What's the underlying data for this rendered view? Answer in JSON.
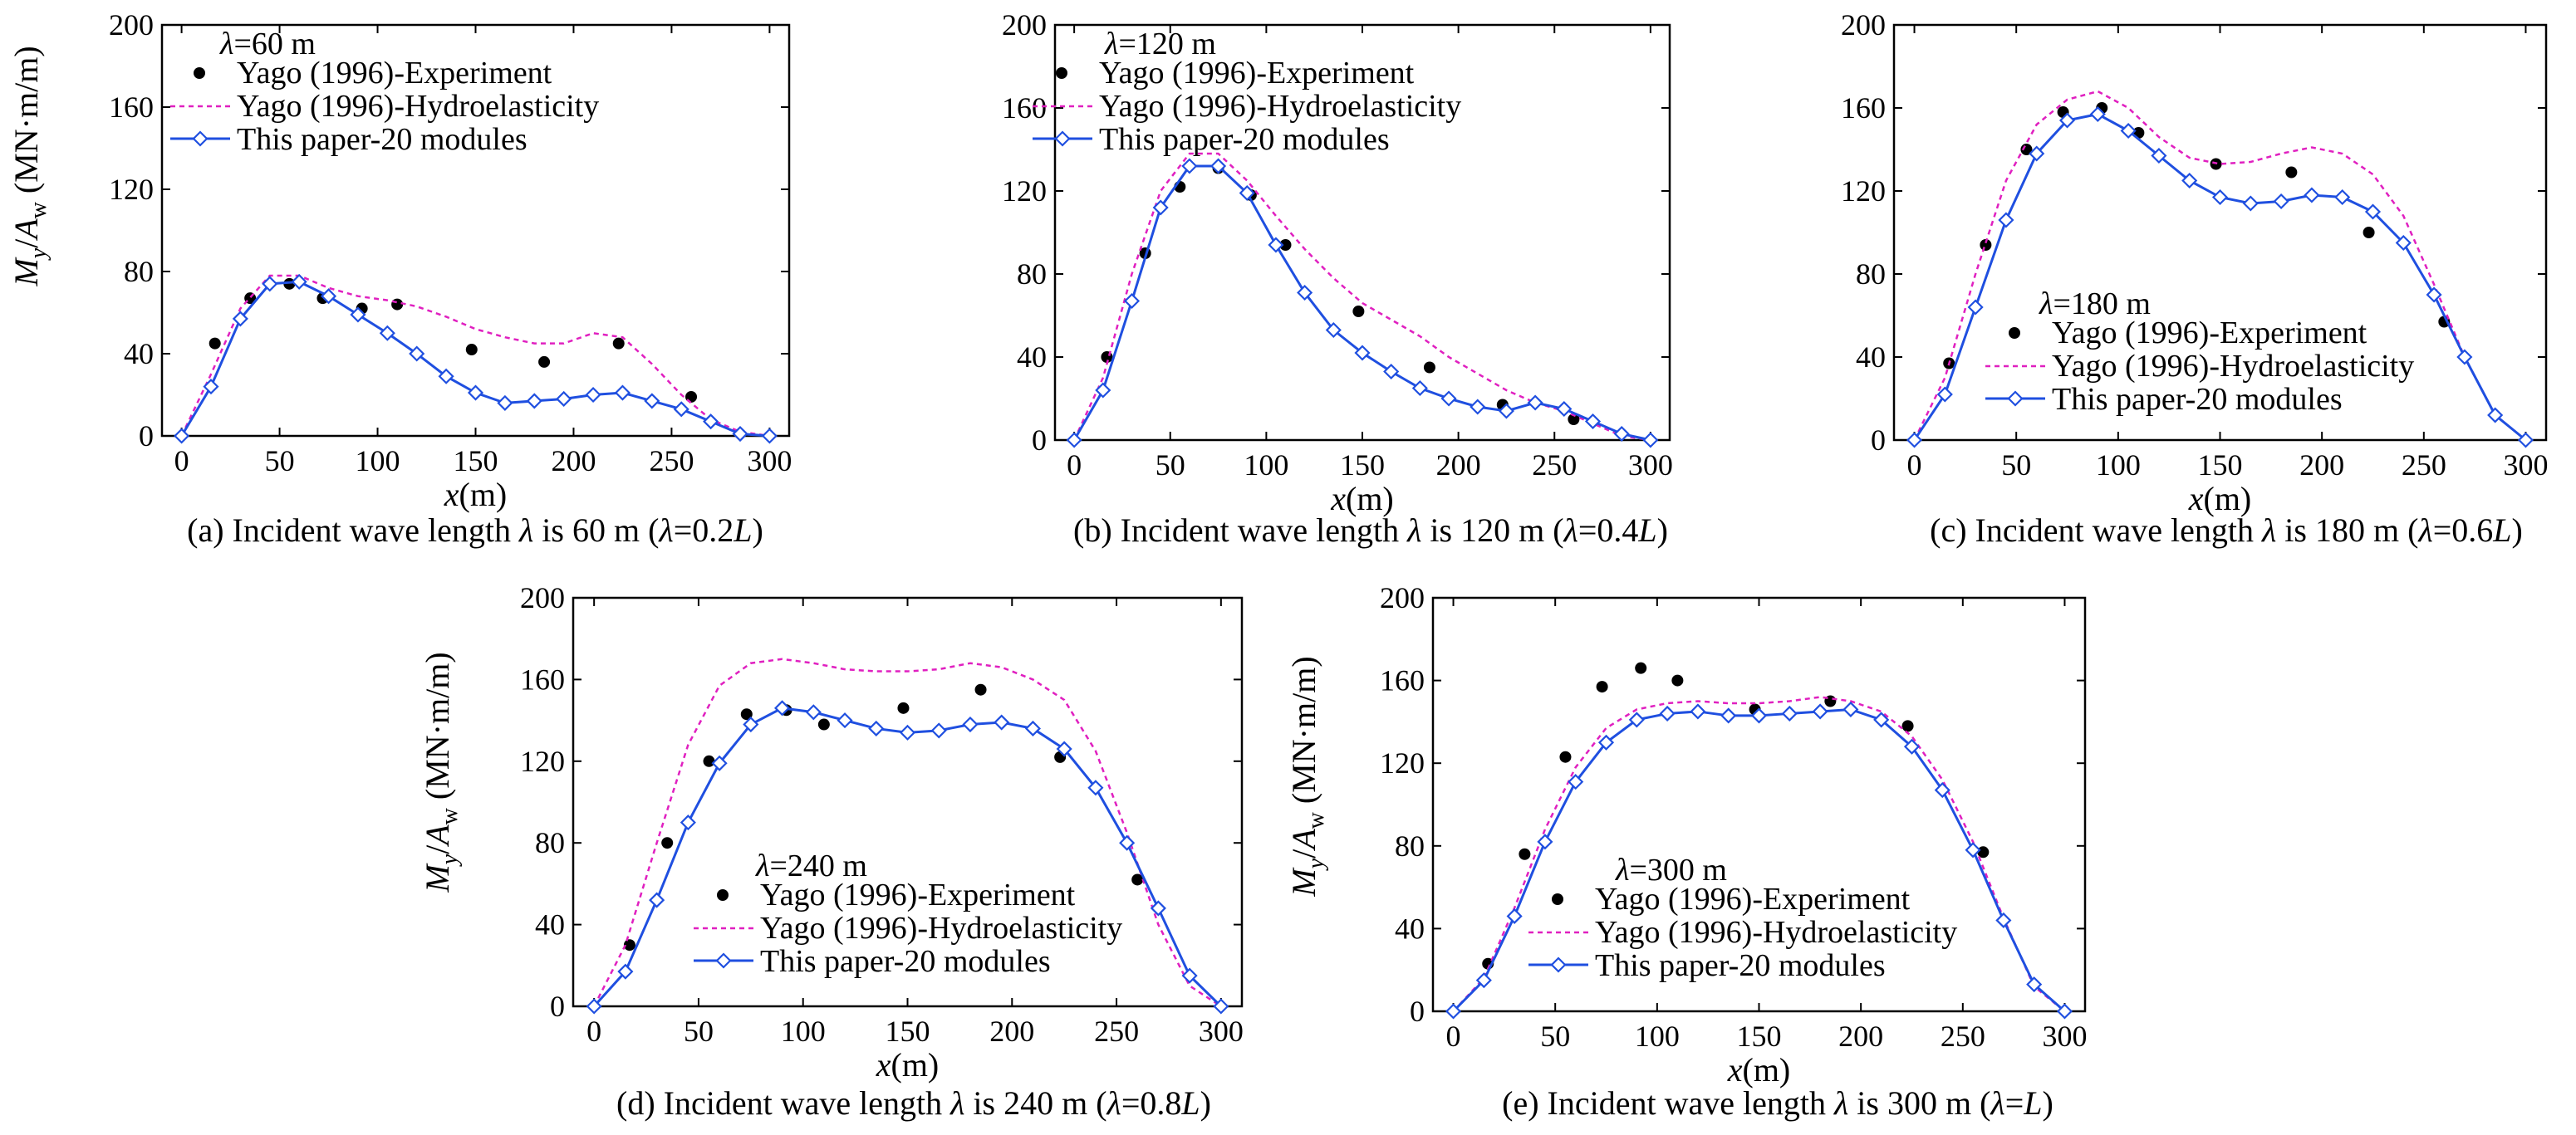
{
  "legend_labels": {
    "experiment": "Yago (1996)-Experiment",
    "hydro": "Yago (1996)-Hydroelasticity",
    "paper": "This paper-20 modules"
  },
  "axis_text": {
    "x_main": "x",
    "x_unit": "(m)",
    "y_M": "M",
    "y_y": "y",
    "y_slash": "/",
    "y_A": "A",
    "y_w": "w",
    "y_unit": " (MN·m/m)"
  },
  "colors": {
    "experiment": "#000000",
    "hydro": "#e020c0",
    "paper": "#1f4fe0"
  },
  "chart_data": [
    {
      "type": "line",
      "id": "a",
      "caption": {
        "pre": "(a) Incident wave length ",
        "lam": "λ",
        "mid": " is 60 m (",
        "lam2": "λ",
        "eq": "=0.2",
        "L": "L",
        "post": ")"
      },
      "wave_label": {
        "lam": "λ",
        "text": "=60 m"
      },
      "xlim": [
        -10,
        310
      ],
      "ylim": [
        0,
        200
      ],
      "xticks": [
        "0",
        "50",
        "100",
        "150",
        "200",
        "250",
        "300"
      ],
      "yticks": [
        "0",
        "40",
        "80",
        "120",
        "160",
        "200"
      ],
      "series": [
        {
          "name": "Yago (1996)-Experiment",
          "kind": "scatter",
          "x": [
            17,
            35,
            55,
            72,
            92,
            110,
            148,
            185,
            223,
            260
          ],
          "y": [
            45,
            67,
            74,
            67,
            62,
            64,
            42,
            36,
            45,
            19
          ]
        },
        {
          "name": "Yago (1996)-Hydroelasticity",
          "kind": "dashed",
          "x": [
            0,
            15,
            30,
            45,
            60,
            75,
            90,
            105,
            120,
            135,
            150,
            165,
            180,
            195,
            210,
            225,
            240,
            255,
            270,
            285,
            300
          ],
          "y": [
            0,
            30,
            62,
            78,
            78,
            72,
            68,
            66,
            63,
            58,
            52,
            48,
            45,
            45,
            50,
            48,
            35,
            20,
            8,
            2,
            0
          ]
        },
        {
          "name": "This paper-20 modules",
          "kind": "line",
          "x": [
            0,
            15,
            30,
            45,
            60,
            75,
            90,
            105,
            120,
            135,
            150,
            165,
            180,
            195,
            210,
            225,
            240,
            255,
            270,
            285,
            300
          ],
          "y": [
            0,
            24,
            57,
            74,
            75,
            68,
            59,
            50,
            40,
            29,
            21,
            16,
            17,
            18,
            20,
            21,
            17,
            13,
            7,
            1,
            0
          ]
        }
      ]
    },
    {
      "type": "line",
      "id": "b",
      "caption": {
        "pre": "(b) Incident wave length ",
        "lam": "λ",
        "mid": " is 120 m (",
        "lam2": "λ",
        "eq": "=0.4",
        "L": "L",
        "post": ")"
      },
      "wave_label": {
        "lam": "λ",
        "text": "=120 m"
      },
      "xlim": [
        -10,
        310
      ],
      "ylim": [
        0,
        200
      ],
      "xticks": [
        "0",
        "50",
        "100",
        "150",
        "200",
        "250",
        "300"
      ],
      "yticks": [
        "0",
        "40",
        "80",
        "120",
        "160",
        "200"
      ],
      "series": [
        {
          "name": "Yago (1996)-Experiment",
          "kind": "scatter",
          "x": [
            17,
            37,
            55,
            75,
            92,
            110,
            148,
            185,
            223,
            260
          ],
          "y": [
            40,
            90,
            122,
            131,
            118,
            94,
            62,
            35,
            17,
            10
          ]
        },
        {
          "name": "Yago (1996)-Hydroelasticity",
          "kind": "dashed",
          "x": [
            0,
            15,
            30,
            45,
            60,
            75,
            90,
            105,
            120,
            135,
            150,
            165,
            180,
            195,
            210,
            225,
            240,
            255,
            270,
            285,
            300
          ],
          "y": [
            0,
            30,
            80,
            120,
            138,
            138,
            125,
            108,
            92,
            78,
            66,
            58,
            50,
            40,
            32,
            24,
            18,
            14,
            8,
            2,
            0
          ]
        },
        {
          "name": "This paper-20 modules",
          "kind": "line",
          "x": [
            0,
            15,
            30,
            45,
            60,
            75,
            90,
            105,
            120,
            135,
            150,
            165,
            180,
            195,
            210,
            225,
            240,
            255,
            270,
            285,
            300
          ],
          "y": [
            0,
            24,
            67,
            112,
            132,
            132,
            119,
            94,
            71,
            53,
            42,
            33,
            25,
            20,
            16,
            14,
            18,
            15,
            9,
            3,
            0
          ]
        }
      ]
    },
    {
      "type": "line",
      "id": "c",
      "caption": {
        "pre": "(c) Incident wave length ",
        "lam": "λ",
        "mid": " is 180 m (",
        "lam2": "λ",
        "eq": "=0.6",
        "L": "L",
        "post": ")"
      },
      "wave_label": {
        "lam": "λ",
        "text": "=180 m"
      },
      "xlim": [
        -10,
        310
      ],
      "ylim": [
        0,
        200
      ],
      "xticks": [
        "0",
        "50",
        "100",
        "150",
        "200",
        "250",
        "300"
      ],
      "yticks": [
        "0",
        "40",
        "80",
        "120",
        "160",
        "200"
      ],
      "series": [
        {
          "name": "Yago (1996)-Experiment",
          "kind": "scatter",
          "x": [
            17,
            35,
            55,
            73,
            92,
            110,
            148,
            185,
            223,
            260
          ],
          "y": [
            37,
            94,
            140,
            158,
            160,
            148,
            133,
            129,
            100,
            57
          ]
        },
        {
          "name": "Yago (1996)-Hydroelasticity",
          "kind": "dashed",
          "x": [
            0,
            15,
            30,
            45,
            60,
            75,
            90,
            105,
            120,
            135,
            150,
            165,
            180,
            195,
            210,
            225,
            240,
            255,
            270,
            285,
            300
          ],
          "y": [
            0,
            30,
            80,
            125,
            152,
            164,
            168,
            160,
            146,
            136,
            133,
            134,
            138,
            141,
            138,
            128,
            108,
            75,
            40,
            12,
            0
          ]
        },
        {
          "name": "This paper-20 modules",
          "kind": "line",
          "x": [
            0,
            15,
            30,
            45,
            60,
            75,
            90,
            105,
            120,
            135,
            150,
            165,
            180,
            195,
            210,
            225,
            240,
            255,
            270,
            285,
            300
          ],
          "y": [
            0,
            22,
            64,
            106,
            138,
            154,
            157,
            149,
            137,
            125,
            117,
            114,
            115,
            118,
            117,
            110,
            95,
            70,
            40,
            12,
            0
          ]
        }
      ]
    },
    {
      "type": "line",
      "id": "d",
      "caption": {
        "pre": "(d) Incident wave length ",
        "lam": "λ",
        "mid": " is 240 m (",
        "lam2": "λ",
        "eq": "=0.8",
        "L": "L",
        "post": ")"
      },
      "wave_label": {
        "lam": "λ",
        "text": "=240 m"
      },
      "xlim": [
        -10,
        310
      ],
      "ylim": [
        0,
        200
      ],
      "xticks": [
        "0",
        "50",
        "100",
        "150",
        "200",
        "250",
        "300"
      ],
      "yticks": [
        "0",
        "40",
        "80",
        "120",
        "160",
        "200"
      ],
      "series": [
        {
          "name": "Yago (1996)-Experiment",
          "kind": "scatter",
          "x": [
            17,
            35,
            55,
            73,
            92,
            110,
            148,
            185,
            223,
            260
          ],
          "y": [
            30,
            80,
            120,
            143,
            145,
            138,
            146,
            155,
            122,
            62
          ]
        },
        {
          "name": "Yago (1996)-Hydroelasticity",
          "kind": "dashed",
          "x": [
            0,
            15,
            30,
            45,
            60,
            75,
            90,
            105,
            120,
            135,
            150,
            165,
            180,
            195,
            210,
            225,
            240,
            255,
            270,
            285,
            300
          ],
          "y": [
            0,
            30,
            80,
            128,
            157,
            168,
            170,
            168,
            165,
            164,
            164,
            165,
            168,
            166,
            160,
            150,
            125,
            85,
            40,
            10,
            0
          ]
        },
        {
          "name": "This paper-20 modules",
          "kind": "line",
          "x": [
            0,
            15,
            30,
            45,
            60,
            75,
            90,
            105,
            120,
            135,
            150,
            165,
            180,
            195,
            210,
            225,
            240,
            255,
            270,
            285,
            300
          ],
          "y": [
            0,
            17,
            52,
            90,
            119,
            138,
            146,
            144,
            140,
            136,
            134,
            135,
            138,
            139,
            136,
            126,
            107,
            80,
            48,
            15,
            0
          ]
        }
      ]
    },
    {
      "type": "line",
      "id": "e",
      "caption": {
        "pre": "(e) Incident wave length ",
        "lam": "λ",
        "mid": " is 300 m (",
        "lam2": "λ",
        "eq": "=",
        "L": "L",
        "post": ")"
      },
      "wave_label": {
        "lam": "λ",
        "text": "=300 m"
      },
      "xlim": [
        -10,
        310
      ],
      "ylim": [
        0,
        200
      ],
      "xticks": [
        "0",
        "50",
        "100",
        "150",
        "200",
        "250",
        "300"
      ],
      "yticks": [
        "0",
        "40",
        "80",
        "120",
        "160",
        "200"
      ],
      "series": [
        {
          "name": "Yago (1996)-Experiment",
          "kind": "scatter",
          "x": [
            17,
            35,
            55,
            73,
            92,
            110,
            148,
            185,
            223,
            260
          ],
          "y": [
            23,
            76,
            123,
            157,
            166,
            160,
            146,
            150,
            138,
            77
          ]
        },
        {
          "name": "Yago (1996)-Hydroelasticity",
          "kind": "dashed",
          "x": [
            0,
            15,
            30,
            45,
            60,
            75,
            90,
            105,
            120,
            135,
            150,
            165,
            180,
            195,
            210,
            225,
            240,
            255,
            270,
            285,
            300
          ],
          "y": [
            0,
            16,
            50,
            88,
            118,
            137,
            146,
            149,
            150,
            149,
            149,
            150,
            152,
            150,
            145,
            133,
            112,
            82,
            45,
            12,
            0
          ]
        },
        {
          "name": "This paper-20 modules",
          "kind": "line",
          "x": [
            0,
            15,
            30,
            45,
            60,
            75,
            90,
            105,
            120,
            135,
            150,
            165,
            180,
            195,
            210,
            225,
            240,
            255,
            270,
            285,
            300
          ],
          "y": [
            0,
            15,
            46,
            82,
            111,
            130,
            141,
            144,
            145,
            143,
            143,
            144,
            145,
            146,
            141,
            128,
            107,
            78,
            44,
            13,
            0
          ]
        }
      ]
    }
  ]
}
